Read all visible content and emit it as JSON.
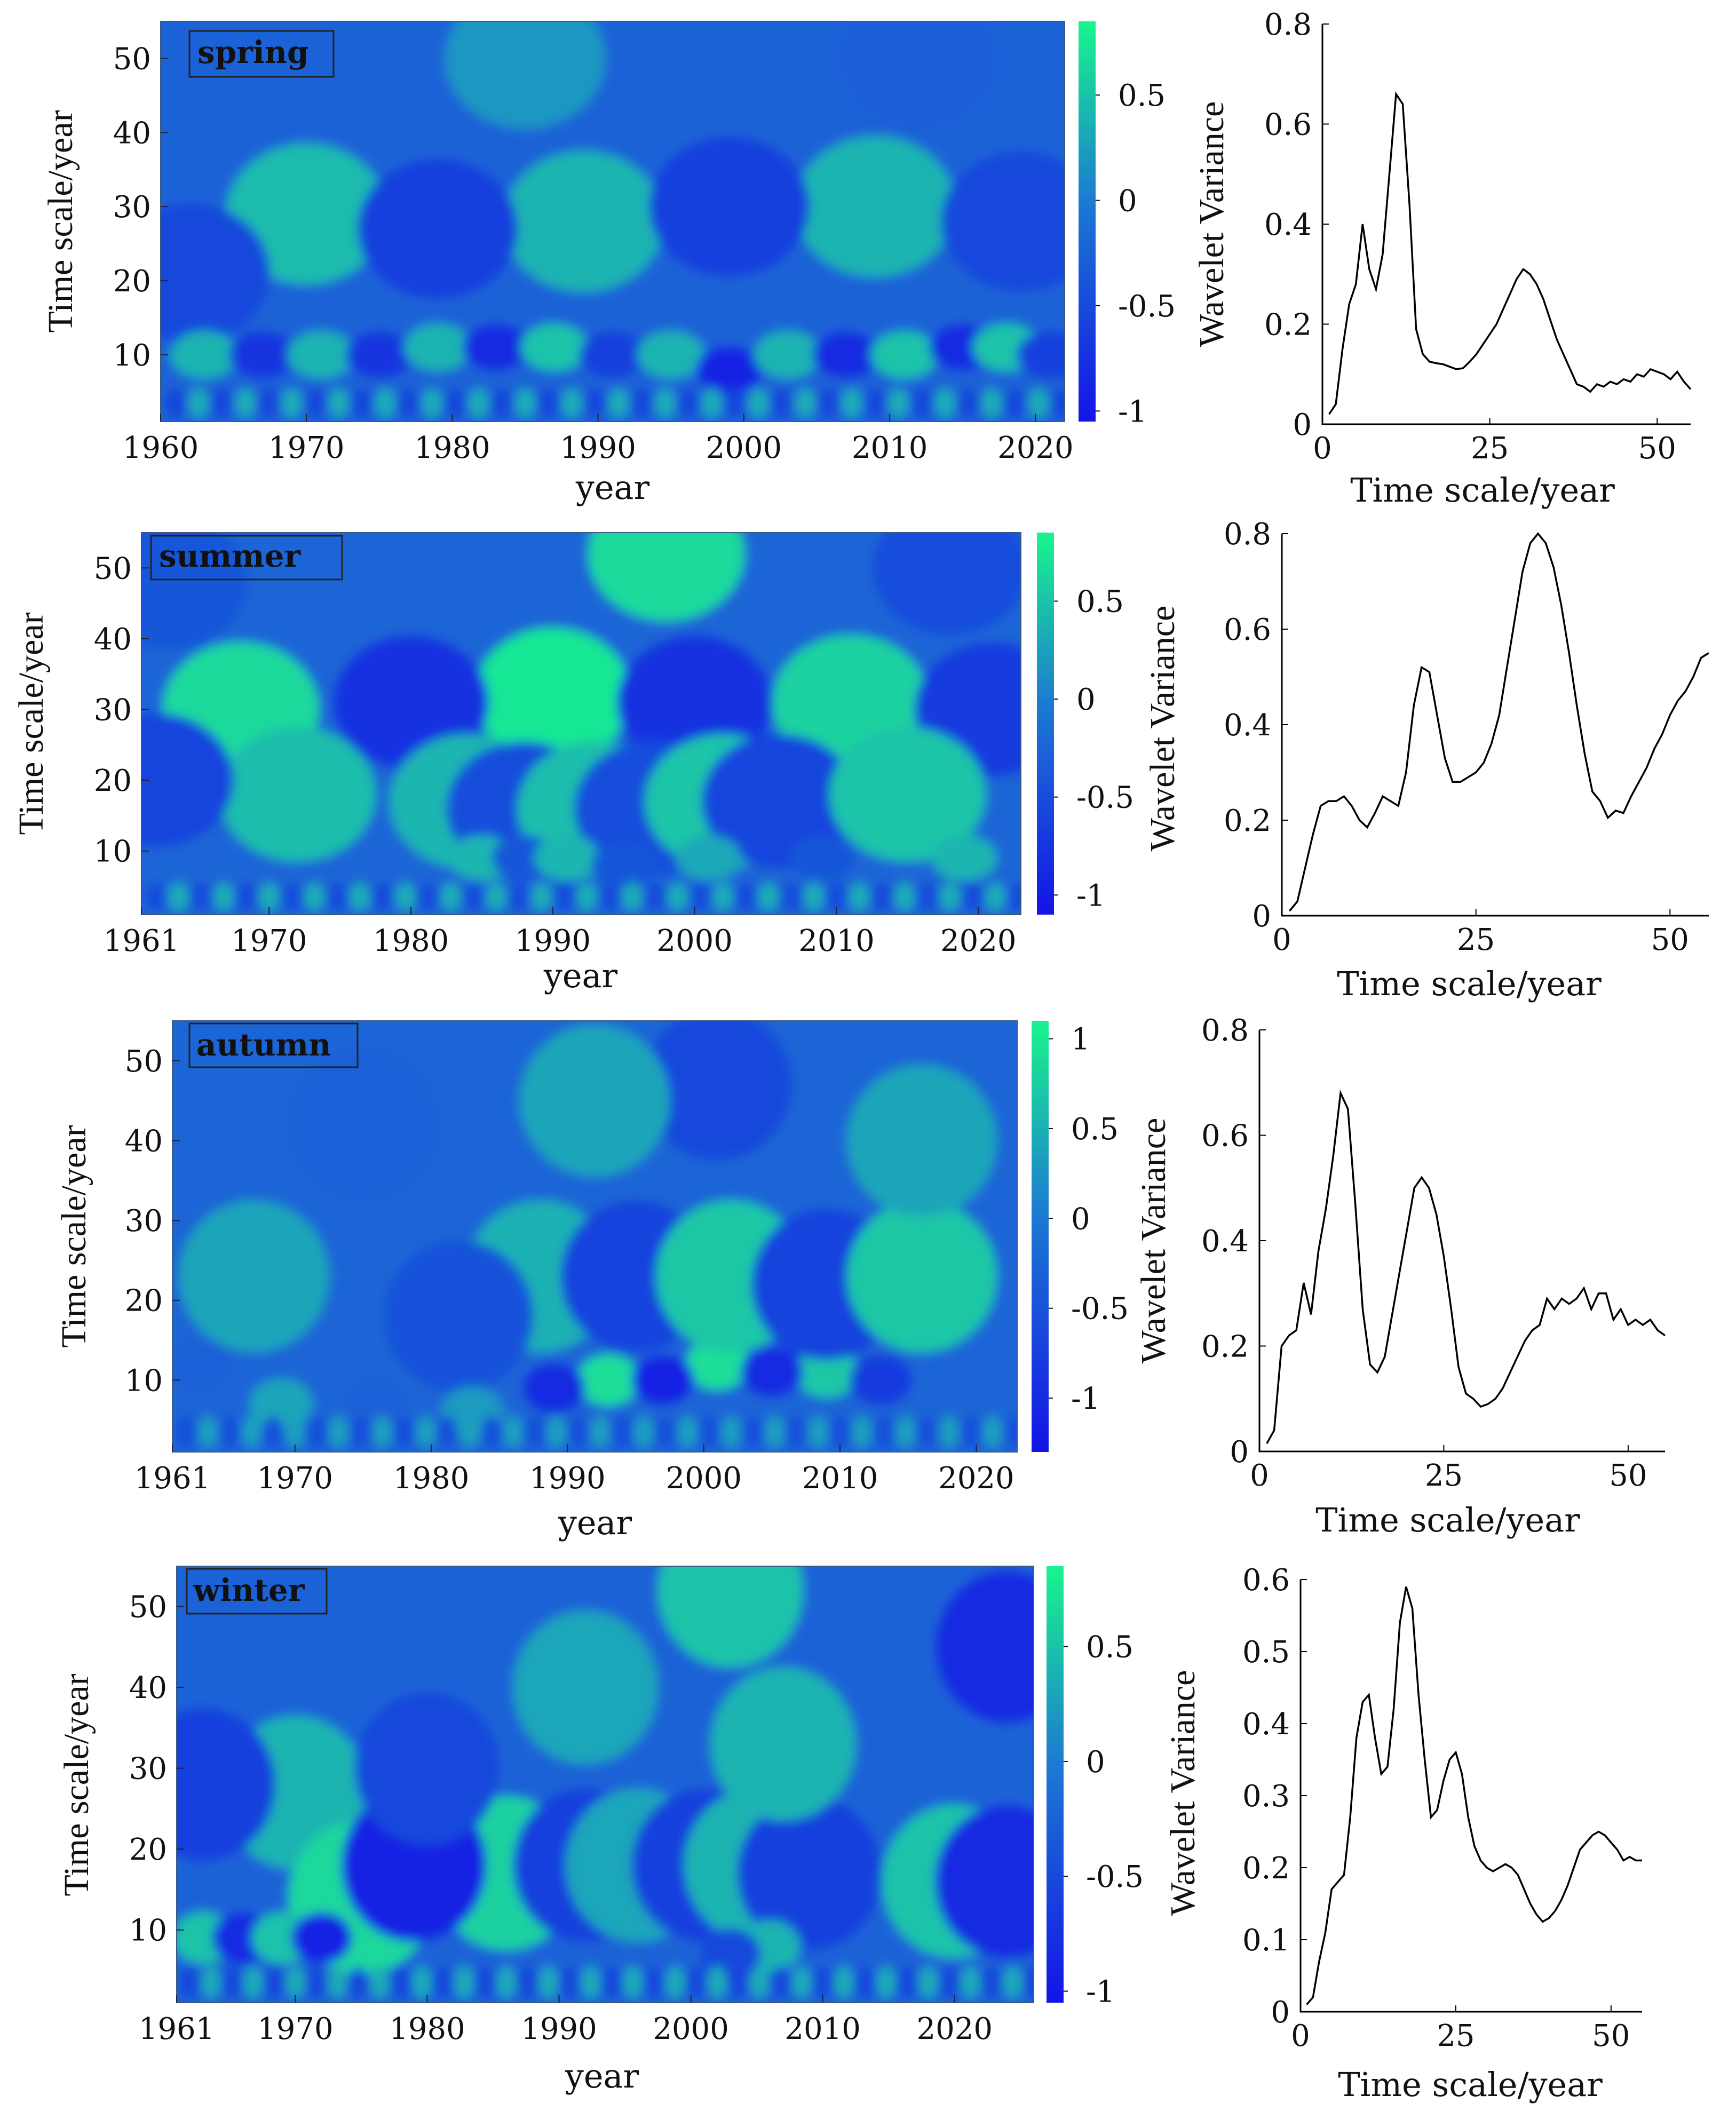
{
  "colors": {
    "low": "#1414e6",
    "mid": "#1c7ad2",
    "high": "#19f58c",
    "line": "#000000"
  },
  "chart_data": [
    {
      "type": "heatmap",
      "season": "spring",
      "x_tick_labels": [
        "1960",
        "1970",
        "1980",
        "1990",
        "2000",
        "2010",
        "2020"
      ],
      "x_ticks": [
        1960,
        1970,
        1980,
        1990,
        2000,
        2010,
        2020
      ],
      "xlim": [
        1960,
        2022
      ],
      "ylim": [
        1,
        55
      ],
      "y_tick_labels": [
        "10",
        "20",
        "30",
        "40",
        "50"
      ],
      "y_ticks": [
        10,
        20,
        30,
        40,
        50
      ],
      "xlabel": "year",
      "ylabel": "Time scale/year",
      "colorbar_ticks": [
        0.5,
        0,
        -0.5,
        -1
      ],
      "colorbar_tick_labels": [
        "0.5",
        "0",
        "-0.5",
        "-1"
      ],
      "colorbar_range": [
        -1.05,
        0.85
      ],
      "blobs": [
        {
          "x": 1970,
          "y": 29,
          "v": 0.45
        },
        {
          "x": 1989,
          "y": 28,
          "v": 0.4
        },
        {
          "x": 2009,
          "y": 30,
          "v": 0.4
        },
        {
          "x": 1979,
          "y": 27,
          "v": -0.6
        },
        {
          "x": 1999,
          "y": 30,
          "v": -0.6
        },
        {
          "x": 2019,
          "y": 28,
          "v": -0.5
        },
        {
          "x": 1962,
          "y": 21,
          "v": -0.5
        },
        {
          "x": 1963,
          "y": 10,
          "v": 0.4
        },
        {
          "x": 1967,
          "y": 10,
          "v": -0.7
        },
        {
          "x": 1971,
          "y": 10,
          "v": 0.4
        },
        {
          "x": 1975,
          "y": 10,
          "v": -0.7
        },
        {
          "x": 1979,
          "y": 11,
          "v": 0.4
        },
        {
          "x": 1983,
          "y": 11,
          "v": -0.8
        },
        {
          "x": 1987,
          "y": 11,
          "v": 0.5
        },
        {
          "x": 1991,
          "y": 10,
          "v": -0.6
        },
        {
          "x": 1995,
          "y": 10,
          "v": 0.4
        },
        {
          "x": 1999,
          "y": 8,
          "v": -0.9
        },
        {
          "x": 2003,
          "y": 10,
          "v": 0.4
        },
        {
          "x": 2007,
          "y": 10,
          "v": -0.8
        },
        {
          "x": 2011,
          "y": 10,
          "v": 0.5
        },
        {
          "x": 2015,
          "y": 11,
          "v": -0.8
        },
        {
          "x": 2018,
          "y": 11,
          "v": 0.5
        },
        {
          "x": 2021,
          "y": 10,
          "v": -0.6
        },
        {
          "x": 1985,
          "y": 50,
          "v": 0.2
        },
        {
          "x": 2012,
          "y": 50,
          "v": -0.3
        }
      ]
    },
    {
      "type": "heatmap",
      "season": "summer",
      "x_tick_labels": [
        "1961",
        "1970",
        "1980",
        "1990",
        "2000",
        "2010",
        "2020"
      ],
      "x_ticks": [
        1961,
        1970,
        1980,
        1990,
        2000,
        2010,
        2020
      ],
      "xlim": [
        1961,
        2023
      ],
      "ylim": [
        1,
        55
      ],
      "y_tick_labels": [
        "10",
        "20",
        "30",
        "40",
        "50"
      ],
      "y_ticks": [
        10,
        20,
        30,
        40,
        50
      ],
      "xlabel": "year",
      "ylabel": "Time scale/year",
      "colorbar_ticks": [
        0.5,
        0,
        -0.5,
        -1
      ],
      "colorbar_tick_labels": [
        "0.5",
        "0",
        "-0.5",
        "-1"
      ],
      "colorbar_range": [
        -1.1,
        0.85
      ],
      "blobs": [
        {
          "x": 1968,
          "y": 30,
          "v": 0.65
        },
        {
          "x": 1972,
          "y": 18,
          "v": 0.45
        },
        {
          "x": 1990,
          "y": 32,
          "v": 0.75
        },
        {
          "x": 2011,
          "y": 31,
          "v": 0.6
        },
        {
          "x": 1998,
          "y": 52,
          "v": 0.65
        },
        {
          "x": 1980,
          "y": 31,
          "v": -0.8
        },
        {
          "x": 2000,
          "y": 31,
          "v": -0.8
        },
        {
          "x": 2021,
          "y": 30,
          "v": -0.7
        },
        {
          "x": 1962,
          "y": 20,
          "v": -0.6
        },
        {
          "x": 1963,
          "y": 48,
          "v": -0.4
        },
        {
          "x": 2018,
          "y": 50,
          "v": -0.5
        },
        {
          "x": 1984,
          "y": 17,
          "v": 0.4
        },
        {
          "x": 1988,
          "y": 16,
          "v": -0.5
        },
        {
          "x": 1993,
          "y": 16,
          "v": 0.45
        },
        {
          "x": 1997,
          "y": 16,
          "v": -0.5
        },
        {
          "x": 2002,
          "y": 17,
          "v": 0.5
        },
        {
          "x": 2006,
          "y": 17,
          "v": -0.6
        },
        {
          "x": 2015,
          "y": 18,
          "v": 0.5
        },
        {
          "x": 1985,
          "y": 9,
          "v": 0.4
        },
        {
          "x": 1988,
          "y": 9,
          "v": -0.4
        },
        {
          "x": 1991,
          "y": 9,
          "v": 0.4
        },
        {
          "x": 1995,
          "y": 8,
          "v": -0.4
        },
        {
          "x": 2001,
          "y": 9,
          "v": 0.3
        },
        {
          "x": 2009,
          "y": 9,
          "v": -0.4
        },
        {
          "x": 2019,
          "y": 9,
          "v": 0.4
        }
      ]
    },
    {
      "type": "heatmap",
      "season": "autumn",
      "x_tick_labels": [
        "1961",
        "1970",
        "1980",
        "1990",
        "2000",
        "2010",
        "2020"
      ],
      "x_ticks": [
        1961,
        1970,
        1980,
        1990,
        2000,
        2010,
        2020
      ],
      "xlim": [
        1961,
        2023
      ],
      "ylim": [
        1,
        55
      ],
      "y_tick_labels": [
        "10",
        "20",
        "30",
        "40",
        "50"
      ],
      "y_ticks": [
        10,
        20,
        30,
        40,
        50
      ],
      "xlabel": "year",
      "ylabel": "Time scale/year",
      "colorbar_ticks": [
        1,
        0.5,
        0,
        -0.5,
        -1
      ],
      "colorbar_tick_labels": [
        "1",
        "0.5",
        "0",
        "-0.5",
        "-1"
      ],
      "colorbar_range": [
        -1.3,
        1.1
      ],
      "blobs": [
        {
          "x": 1993,
          "y": 10,
          "v": 0.9
        },
        {
          "x": 2001,
          "y": 12,
          "v": 0.9
        },
        {
          "x": 2009,
          "y": 11,
          "v": 0.7
        },
        {
          "x": 1989,
          "y": 9,
          "v": -1.0
        },
        {
          "x": 1997,
          "y": 10,
          "v": -1.1
        },
        {
          "x": 2005,
          "y": 11,
          "v": -1.0
        },
        {
          "x": 2013,
          "y": 10,
          "v": -0.8
        },
        {
          "x": 1988,
          "y": 23,
          "v": 0.5
        },
        {
          "x": 1995,
          "y": 23,
          "v": -0.7
        },
        {
          "x": 2002,
          "y": 23,
          "v": 0.7
        },
        {
          "x": 2009,
          "y": 22,
          "v": -0.7
        },
        {
          "x": 2016,
          "y": 23,
          "v": 0.7
        },
        {
          "x": 1967,
          "y": 23,
          "v": 0.4
        },
        {
          "x": 1963,
          "y": 12,
          "v": -0.3
        },
        {
          "x": 1982,
          "y": 18,
          "v": -0.5
        },
        {
          "x": 2001,
          "y": 47,
          "v": -0.6
        },
        {
          "x": 1992,
          "y": 45,
          "v": 0.4
        },
        {
          "x": 2016,
          "y": 40,
          "v": 0.4
        },
        {
          "x": 1975,
          "y": 42,
          "v": -0.3
        },
        {
          "x": 1969,
          "y": 7,
          "v": 0.4
        },
        {
          "x": 1976,
          "y": 7,
          "v": -0.3
        },
        {
          "x": 1983,
          "y": 6,
          "v": 0.3
        }
      ]
    },
    {
      "type": "heatmap",
      "season": "winter",
      "x_tick_labels": [
        "1961",
        "1970",
        "1980",
        "1990",
        "2000",
        "2010",
        "2020"
      ],
      "x_ticks": [
        1961,
        1970,
        1980,
        1990,
        2000,
        2010,
        2020
      ],
      "xlim": [
        1961,
        2026
      ],
      "ylim": [
        1,
        55
      ],
      "y_tick_labels": [
        "10",
        "20",
        "30",
        "40",
        "50"
      ],
      "y_ticks": [
        10,
        20,
        30,
        40,
        50
      ],
      "xlabel": "year",
      "ylabel": "Time scale/year",
      "colorbar_ticks": [
        0.5,
        0,
        -0.5,
        -1
      ],
      "colorbar_tick_labels": [
        "0.5",
        "0",
        "-0.5",
        "-1"
      ],
      "colorbar_range": [
        -1.05,
        0.85
      ],
      "blobs": [
        {
          "x": 1970,
          "y": 27,
          "v": 0.4
        },
        {
          "x": 1975,
          "y": 14,
          "v": 0.65
        },
        {
          "x": 1986,
          "y": 17,
          "v": 0.6
        },
        {
          "x": 1979,
          "y": 18,
          "v": -0.9
        },
        {
          "x": 1980,
          "y": 30,
          "v": -0.5
        },
        {
          "x": 1992,
          "y": 18,
          "v": -0.6
        },
        {
          "x": 1996,
          "y": 18,
          "v": 0.3
        },
        {
          "x": 2001,
          "y": 18,
          "v": -0.6
        },
        {
          "x": 2005,
          "y": 18,
          "v": 0.4
        },
        {
          "x": 2009,
          "y": 17,
          "v": -0.6
        },
        {
          "x": 2020,
          "y": 16,
          "v": 0.5
        },
        {
          "x": 2024,
          "y": 16,
          "v": -0.8
        },
        {
          "x": 1963,
          "y": 28,
          "v": -0.6
        },
        {
          "x": 2024,
          "y": 45,
          "v": -0.8
        },
        {
          "x": 2003,
          "y": 52,
          "v": 0.5
        },
        {
          "x": 2007,
          "y": 33,
          "v": 0.4
        },
        {
          "x": 1992,
          "y": 40,
          "v": 0.3
        },
        {
          "x": 1963,
          "y": 9,
          "v": 0.5
        },
        {
          "x": 1966,
          "y": 9,
          "v": -0.8
        },
        {
          "x": 1969,
          "y": 9,
          "v": 0.5
        },
        {
          "x": 1972,
          "y": 9,
          "v": -0.9
        },
        {
          "x": 2006,
          "y": 8,
          "v": 0.4
        },
        {
          "x": 2003,
          "y": 7,
          "v": -0.5
        }
      ]
    },
    {
      "type": "line",
      "season": "spring",
      "xlabel": "Time scale/year",
      "ylabel": "Wavelet Variance",
      "xlim": [
        0,
        55
      ],
      "ylim": [
        0,
        0.8
      ],
      "x_ticks": [
        0,
        25,
        50
      ],
      "x_tick_labels": [
        "0",
        "25",
        "50"
      ],
      "y_ticks": [
        0,
        0.2,
        0.4,
        0.6,
        0.8
      ],
      "y_tick_labels": [
        "0",
        "0.2",
        "0.4",
        "0.6",
        "0.8"
      ],
      "x": [
        1,
        2,
        3,
        4,
        5,
        6,
        7,
        8,
        9,
        10,
        11,
        12,
        13,
        14,
        15,
        16,
        17,
        18,
        19,
        20,
        21,
        22,
        23,
        24,
        25,
        26,
        27,
        28,
        29,
        30,
        31,
        32,
        33,
        34,
        35,
        36,
        37,
        38,
        39,
        40,
        41,
        42,
        43,
        44,
        45,
        46,
        47,
        48,
        49,
        50,
        51,
        52,
        53,
        54,
        55
      ],
      "values": [
        0.02,
        0.04,
        0.15,
        0.24,
        0.28,
        0.4,
        0.31,
        0.27,
        0.34,
        0.5,
        0.66,
        0.64,
        0.44,
        0.19,
        0.14,
        0.125,
        0.122,
        0.12,
        0.115,
        0.11,
        0.112,
        0.125,
        0.14,
        0.16,
        0.18,
        0.2,
        0.23,
        0.26,
        0.29,
        0.31,
        0.3,
        0.28,
        0.25,
        0.21,
        0.17,
        0.14,
        0.11,
        0.08,
        0.075,
        0.065,
        0.08,
        0.075,
        0.085,
        0.08,
        0.09,
        0.085,
        0.1,
        0.095,
        0.11,
        0.105,
        0.1,
        0.09,
        0.105,
        0.085,
        0.07
      ]
    },
    {
      "type": "line",
      "season": "summer",
      "xlabel": "Time scale/year",
      "ylabel": "Wavelet Variance",
      "xlim": [
        0,
        55
      ],
      "ylim": [
        0,
        0.8
      ],
      "x_ticks": [
        0,
        25,
        50
      ],
      "x_tick_labels": [
        "0",
        "25",
        "50"
      ],
      "y_ticks": [
        0,
        0.2,
        0.4,
        0.6,
        0.8
      ],
      "y_tick_labels": [
        "0",
        "0.2",
        "0.4",
        "0.6",
        "0.8"
      ],
      "x": [
        1,
        2,
        3,
        4,
        5,
        6,
        7,
        8,
        9,
        10,
        11,
        12,
        13,
        14,
        15,
        16,
        17,
        18,
        19,
        20,
        21,
        22,
        23,
        24,
        25,
        26,
        27,
        28,
        29,
        30,
        31,
        32,
        33,
        34,
        35,
        36,
        37,
        38,
        39,
        40,
        41,
        42,
        43,
        44,
        45,
        46,
        47,
        48,
        49,
        50,
        51,
        52,
        53,
        54,
        55
      ],
      "values": [
        0.01,
        0.03,
        0.1,
        0.17,
        0.23,
        0.24,
        0.24,
        0.25,
        0.23,
        0.2,
        0.185,
        0.215,
        0.25,
        0.24,
        0.23,
        0.3,
        0.44,
        0.52,
        0.51,
        0.42,
        0.33,
        0.28,
        0.28,
        0.29,
        0.3,
        0.32,
        0.36,
        0.42,
        0.52,
        0.62,
        0.72,
        0.78,
        0.8,
        0.78,
        0.73,
        0.65,
        0.55,
        0.44,
        0.34,
        0.26,
        0.24,
        0.205,
        0.22,
        0.215,
        0.25,
        0.28,
        0.31,
        0.35,
        0.38,
        0.42,
        0.45,
        0.47,
        0.5,
        0.54,
        0.55
      ]
    },
    {
      "type": "line",
      "season": "autumn",
      "xlabel": "Time scale/year",
      "ylabel": "Wavelet Variance",
      "xlim": [
        0,
        55
      ],
      "ylim": [
        0,
        0.8
      ],
      "x_ticks": [
        0,
        25,
        50
      ],
      "x_tick_labels": [
        "0",
        "25",
        "50"
      ],
      "y_ticks": [
        0,
        0.2,
        0.4,
        0.6,
        0.8
      ],
      "y_tick_labels": [
        "0",
        "0.2",
        "0.4",
        "0.6",
        "0.8"
      ],
      "x": [
        1,
        2,
        3,
        4,
        5,
        6,
        7,
        8,
        9,
        10,
        11,
        12,
        13,
        14,
        15,
        16,
        17,
        18,
        19,
        20,
        21,
        22,
        23,
        24,
        25,
        26,
        27,
        28,
        29,
        30,
        31,
        32,
        33,
        34,
        35,
        36,
        37,
        38,
        39,
        40,
        41,
        42,
        43,
        44,
        45,
        46,
        47,
        48,
        49,
        50,
        51,
        52,
        53,
        54,
        55
      ],
      "values": [
        0.015,
        0.04,
        0.2,
        0.22,
        0.23,
        0.32,
        0.26,
        0.38,
        0.46,
        0.56,
        0.68,
        0.65,
        0.47,
        0.27,
        0.165,
        0.15,
        0.18,
        0.26,
        0.34,
        0.42,
        0.5,
        0.52,
        0.5,
        0.45,
        0.37,
        0.27,
        0.16,
        0.11,
        0.1,
        0.085,
        0.09,
        0.1,
        0.12,
        0.15,
        0.18,
        0.21,
        0.23,
        0.24,
        0.29,
        0.27,
        0.29,
        0.28,
        0.29,
        0.31,
        0.27,
        0.3,
        0.3,
        0.25,
        0.27,
        0.24,
        0.25,
        0.24,
        0.25,
        0.23,
        0.22
      ]
    },
    {
      "type": "line",
      "season": "winter",
      "xlabel": "Time scale/year",
      "ylabel": "Wavelet Variance",
      "xlim": [
        0,
        55
      ],
      "ylim": [
        0,
        0.6
      ],
      "x_ticks": [
        0,
        25,
        50
      ],
      "x_tick_labels": [
        "0",
        "25",
        "50"
      ],
      "y_ticks": [
        0,
        0.1,
        0.2,
        0.3,
        0.4,
        0.5,
        0.6
      ],
      "y_tick_labels": [
        "0",
        "0.1",
        "0.2",
        "0.3",
        "0.4",
        "0.5",
        "0.6"
      ],
      "x": [
        1,
        2,
        3,
        4,
        5,
        6,
        7,
        8,
        9,
        10,
        11,
        12,
        13,
        14,
        15,
        16,
        17,
        18,
        19,
        20,
        21,
        22,
        23,
        24,
        25,
        26,
        27,
        28,
        29,
        30,
        31,
        32,
        33,
        34,
        35,
        36,
        37,
        38,
        39,
        40,
        41,
        42,
        43,
        44,
        45,
        46,
        47,
        48,
        49,
        50,
        51,
        52,
        53,
        54,
        55
      ],
      "values": [
        0.01,
        0.02,
        0.07,
        0.11,
        0.17,
        0.18,
        0.19,
        0.27,
        0.38,
        0.43,
        0.44,
        0.38,
        0.33,
        0.34,
        0.42,
        0.54,
        0.59,
        0.56,
        0.44,
        0.35,
        0.27,
        0.28,
        0.32,
        0.35,
        0.36,
        0.33,
        0.27,
        0.23,
        0.21,
        0.2,
        0.195,
        0.2,
        0.205,
        0.2,
        0.19,
        0.17,
        0.15,
        0.135,
        0.125,
        0.13,
        0.14,
        0.155,
        0.175,
        0.2,
        0.225,
        0.235,
        0.245,
        0.25,
        0.245,
        0.235,
        0.225,
        0.21,
        0.215,
        0.21,
        0.21
      ]
    }
  ]
}
